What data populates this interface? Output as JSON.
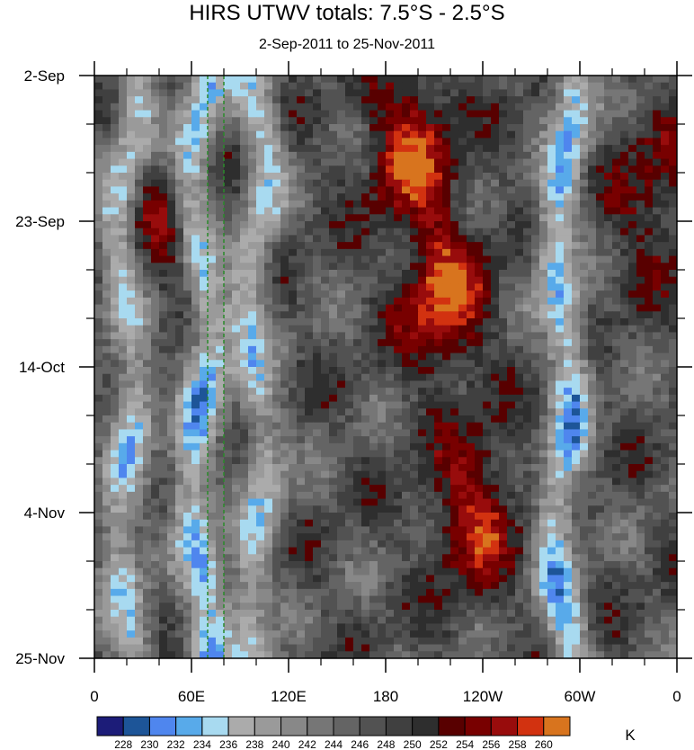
{
  "chart_data": {
    "type": "heatmap",
    "title": "HIRS UTWV totals: 7.5°S - 2.5°S",
    "subtitle": "2-Sep-2011 to 25-Nov-2011",
    "x_ticks": [
      "0",
      "60E",
      "120E",
      "180",
      "120W",
      "60W",
      "0"
    ],
    "y_ticks": [
      "2-Sep",
      "23-Sep",
      "14-Oct",
      "4-Nov",
      "25-Nov"
    ],
    "x_range": [
      0,
      360
    ],
    "y_range": [
      "2011-09-02",
      "2011-11-25"
    ],
    "colorbar": {
      "unit": "K",
      "levels": [
        228,
        230,
        232,
        234,
        236,
        238,
        240,
        242,
        244,
        246,
        248,
        250,
        252,
        254,
        256,
        258,
        260
      ],
      "colors": [
        "#1c1c78",
        "#1d5598",
        "#4f86ee",
        "#58aaea",
        "#a8daf0",
        "#ababab",
        "#9a9a9a",
        "#888888",
        "#767676",
        "#646464",
        "#525252",
        "#404040",
        "#2e2e2e",
        "#580000",
        "#780000",
        "#980c0c",
        "#d23210",
        "#d8741e"
      ]
    },
    "reference_lines": {
      "color": "#2a8a2a",
      "style": "dashed",
      "x": [
        "70E",
        "80E"
      ]
    },
    "fields": {
      "cold_bands_K": [
        {
          "lon": 20,
          "value": 235
        },
        {
          "lon": 65,
          "value": 233
        },
        {
          "lon": 100,
          "value": 236
        },
        {
          "lon": 290,
          "value": 233
        }
      ],
      "warm_regions_K": [
        {
          "lon": 195,
          "date": "2011-09-12",
          "value": 259
        },
        {
          "lon": 215,
          "date": "2011-10-04",
          "value": 260
        },
        {
          "lon": 235,
          "date": "2011-11-04",
          "value": 258
        },
        {
          "lon": 45,
          "date": "2011-09-25",
          "value": 254
        },
        {
          "lon": 345,
          "date": "2011-09-20",
          "value": 254
        }
      ]
    }
  }
}
